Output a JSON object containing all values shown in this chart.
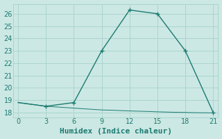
{
  "xlabel": "Humidex (Indice chaleur)",
  "bg_color": "#cce8e4",
  "grid_color": "#aad4ce",
  "line_color": "#1a7a70",
  "x_ticks": [
    0,
    3,
    6,
    9,
    12,
    15,
    18,
    21
  ],
  "y_ticks": [
    18,
    19,
    20,
    21,
    22,
    23,
    24,
    25,
    26
  ],
  "xlim": [
    -0.5,
    21.5
  ],
  "ylim": [
    17.6,
    26.8
  ],
  "line1_x": [
    0,
    3,
    6,
    9,
    12,
    15,
    18,
    21
  ],
  "line1_y": [
    18.8,
    18.5,
    18.8,
    23.0,
    26.3,
    26.0,
    23.0,
    18.0
  ],
  "line1_marker_idx": [
    1,
    2,
    3,
    4,
    5,
    6,
    7
  ],
  "line2_x": [
    0,
    1,
    2,
    3,
    4,
    5,
    6,
    7,
    8,
    9,
    10,
    11,
    12,
    13,
    14,
    15,
    16,
    17,
    18,
    19,
    20,
    21
  ],
  "line2_y": [
    18.8,
    18.7,
    18.6,
    18.5,
    18.45,
    18.4,
    18.35,
    18.3,
    18.25,
    18.2,
    18.18,
    18.15,
    18.12,
    18.1,
    18.08,
    18.05,
    18.03,
    18.01,
    18.0,
    17.98,
    17.97,
    17.96
  ],
  "marker_size": 4,
  "linewidth": 1.0,
  "xlabel_fontsize": 8,
  "tick_fontsize": 7
}
